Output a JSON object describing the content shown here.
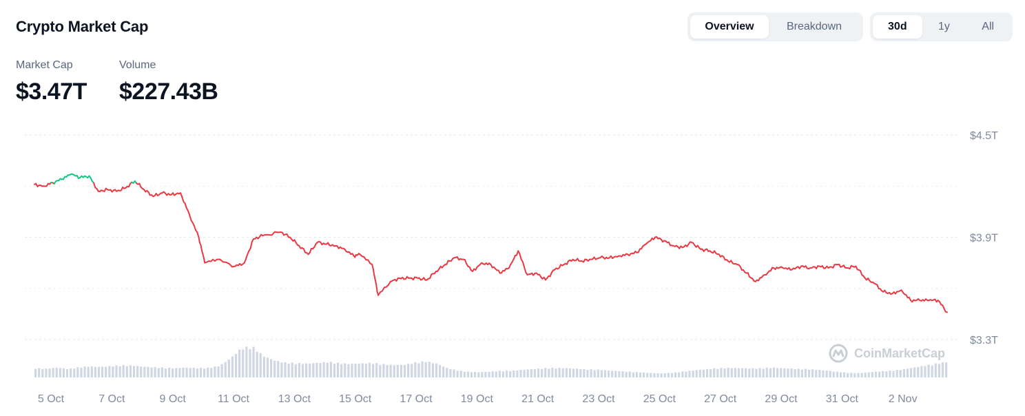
{
  "header": {
    "title": "Crypto Market Cap",
    "view_tabs": [
      "Overview",
      "Breakdown"
    ],
    "view_active": "Overview",
    "range_tabs": [
      "30d",
      "1y",
      "All"
    ],
    "range_active": "30d"
  },
  "stats": [
    {
      "label": "Market Cap",
      "value": "$3.47T"
    },
    {
      "label": "Volume",
      "value": "$227.43B"
    }
  ],
  "watermark": "CoinMarketCap",
  "colors": {
    "up": "#16c784",
    "down": "#ea3943",
    "volume": "#cfd6e4",
    "grid": "#e4e7eb",
    "axis_text": "#808a9d"
  },
  "chart_data": {
    "type": "line",
    "x_ticks": [
      "5 Oct",
      "7 Oct",
      "9 Oct",
      "11 Oct",
      "13 Oct",
      "15 Oct",
      "17 Oct",
      "19 Oct",
      "21 Oct",
      "23 Oct",
      "25 Oct",
      "27 Oct",
      "29 Oct",
      "31 Oct",
      "2 Nov"
    ],
    "y_ticks": [
      "$4.5T",
      "$3.9T",
      "$3.3T"
    ],
    "y_tick_values": [
      4.5,
      3.9,
      3.3
    ],
    "ylim": [
      3.3,
      4.5
    ],
    "reference_value": 4.22,
    "series": [
      {
        "x_days": [
          0,
          0.3,
          0.6,
          0.9,
          1.2,
          1.5,
          1.8,
          2.1,
          2.4,
          2.7,
          3.0,
          3.3,
          3.6,
          3.9,
          4.2,
          4.5,
          4.8,
          5.1,
          5.4,
          5.6,
          6.0,
          6.6,
          6.9,
          7.2,
          7.5,
          8.1,
          8.4,
          8.7,
          9.0,
          9.3,
          9.6,
          9.9,
          10.2,
          10.5,
          10.7,
          11.1,
          11.3,
          11.7,
          12.0,
          12.3,
          12.6,
          12.9,
          13.2,
          13.5,
          13.8,
          14.1,
          14.4,
          14.7,
          15.0,
          15.3,
          15.6,
          15.9,
          16.2,
          16.5,
          16.8,
          17.1,
          17.4,
          17.7,
          18.0,
          18.3,
          18.6,
          18.9,
          19.2,
          19.5,
          19.8,
          20.1,
          20.4,
          20.7,
          21.0,
          21.3,
          21.6,
          21.9,
          22.2,
          22.5,
          22.8,
          23.1,
          23.4,
          23.7,
          24.0,
          24.3,
          24.6,
          24.9,
          25.2,
          25.5,
          25.8,
          26.1,
          26.4,
          26.7,
          27.0,
          27.3,
          27.6,
          27.9,
          28.2,
          28.5,
          28.8,
          29.1,
          29.4,
          29.7,
          30.0
        ],
        "values": [
          4.21,
          4.2,
          4.22,
          4.24,
          4.27,
          4.25,
          4.26,
          4.17,
          4.18,
          4.17,
          4.19,
          4.23,
          4.18,
          4.14,
          4.16,
          4.15,
          4.16,
          4.03,
          3.9,
          3.75,
          3.77,
          3.73,
          3.75,
          3.89,
          3.91,
          3.93,
          3.9,
          3.85,
          3.8,
          3.87,
          3.86,
          3.85,
          3.83,
          3.79,
          3.8,
          3.74,
          3.56,
          3.64,
          3.66,
          3.66,
          3.66,
          3.65,
          3.7,
          3.74,
          3.78,
          3.77,
          3.7,
          3.75,
          3.74,
          3.69,
          3.72,
          3.82,
          3.68,
          3.69,
          3.65,
          3.71,
          3.74,
          3.77,
          3.76,
          3.77,
          3.78,
          3.78,
          3.79,
          3.8,
          3.81,
          3.86,
          3.9,
          3.88,
          3.85,
          3.84,
          3.87,
          3.83,
          3.82,
          3.8,
          3.76,
          3.74,
          3.69,
          3.64,
          3.68,
          3.72,
          3.72,
          3.71,
          3.73,
          3.72,
          3.73,
          3.72,
          3.74,
          3.72,
          3.73,
          3.66,
          3.63,
          3.58,
          3.57,
          3.59,
          3.53,
          3.53,
          3.53,
          3.53,
          3.46
        ]
      }
    ],
    "volume_relative": [
      0.3,
      0.28,
      0.32,
      0.27,
      0.33,
      0.36,
      0.34,
      0.37,
      0.39,
      0.38,
      0.35,
      0.33,
      0.31,
      0.3,
      0.32,
      0.3,
      0.31,
      0.38,
      0.62,
      0.95,
      1.0,
      0.7,
      0.55,
      0.48,
      0.46,
      0.45,
      0.47,
      0.5,
      0.46,
      0.44,
      0.45,
      0.47,
      0.43,
      0.4,
      0.41,
      0.48,
      0.52,
      0.45,
      0.3,
      0.22,
      0.18,
      0.17,
      0.19,
      0.21,
      0.22,
      0.25,
      0.27,
      0.3,
      0.31,
      0.3,
      0.28,
      0.26,
      0.25,
      0.22,
      0.2,
      0.18,
      0.16,
      0.14,
      0.13,
      0.16,
      0.2,
      0.24,
      0.27,
      0.3,
      0.31,
      0.3,
      0.29,
      0.3,
      0.32,
      0.3,
      0.28,
      0.27,
      0.25,
      0.22,
      0.18,
      0.15,
      0.14,
      0.17,
      0.2,
      0.22,
      0.26,
      0.32,
      0.38,
      0.44,
      0.5
    ]
  }
}
